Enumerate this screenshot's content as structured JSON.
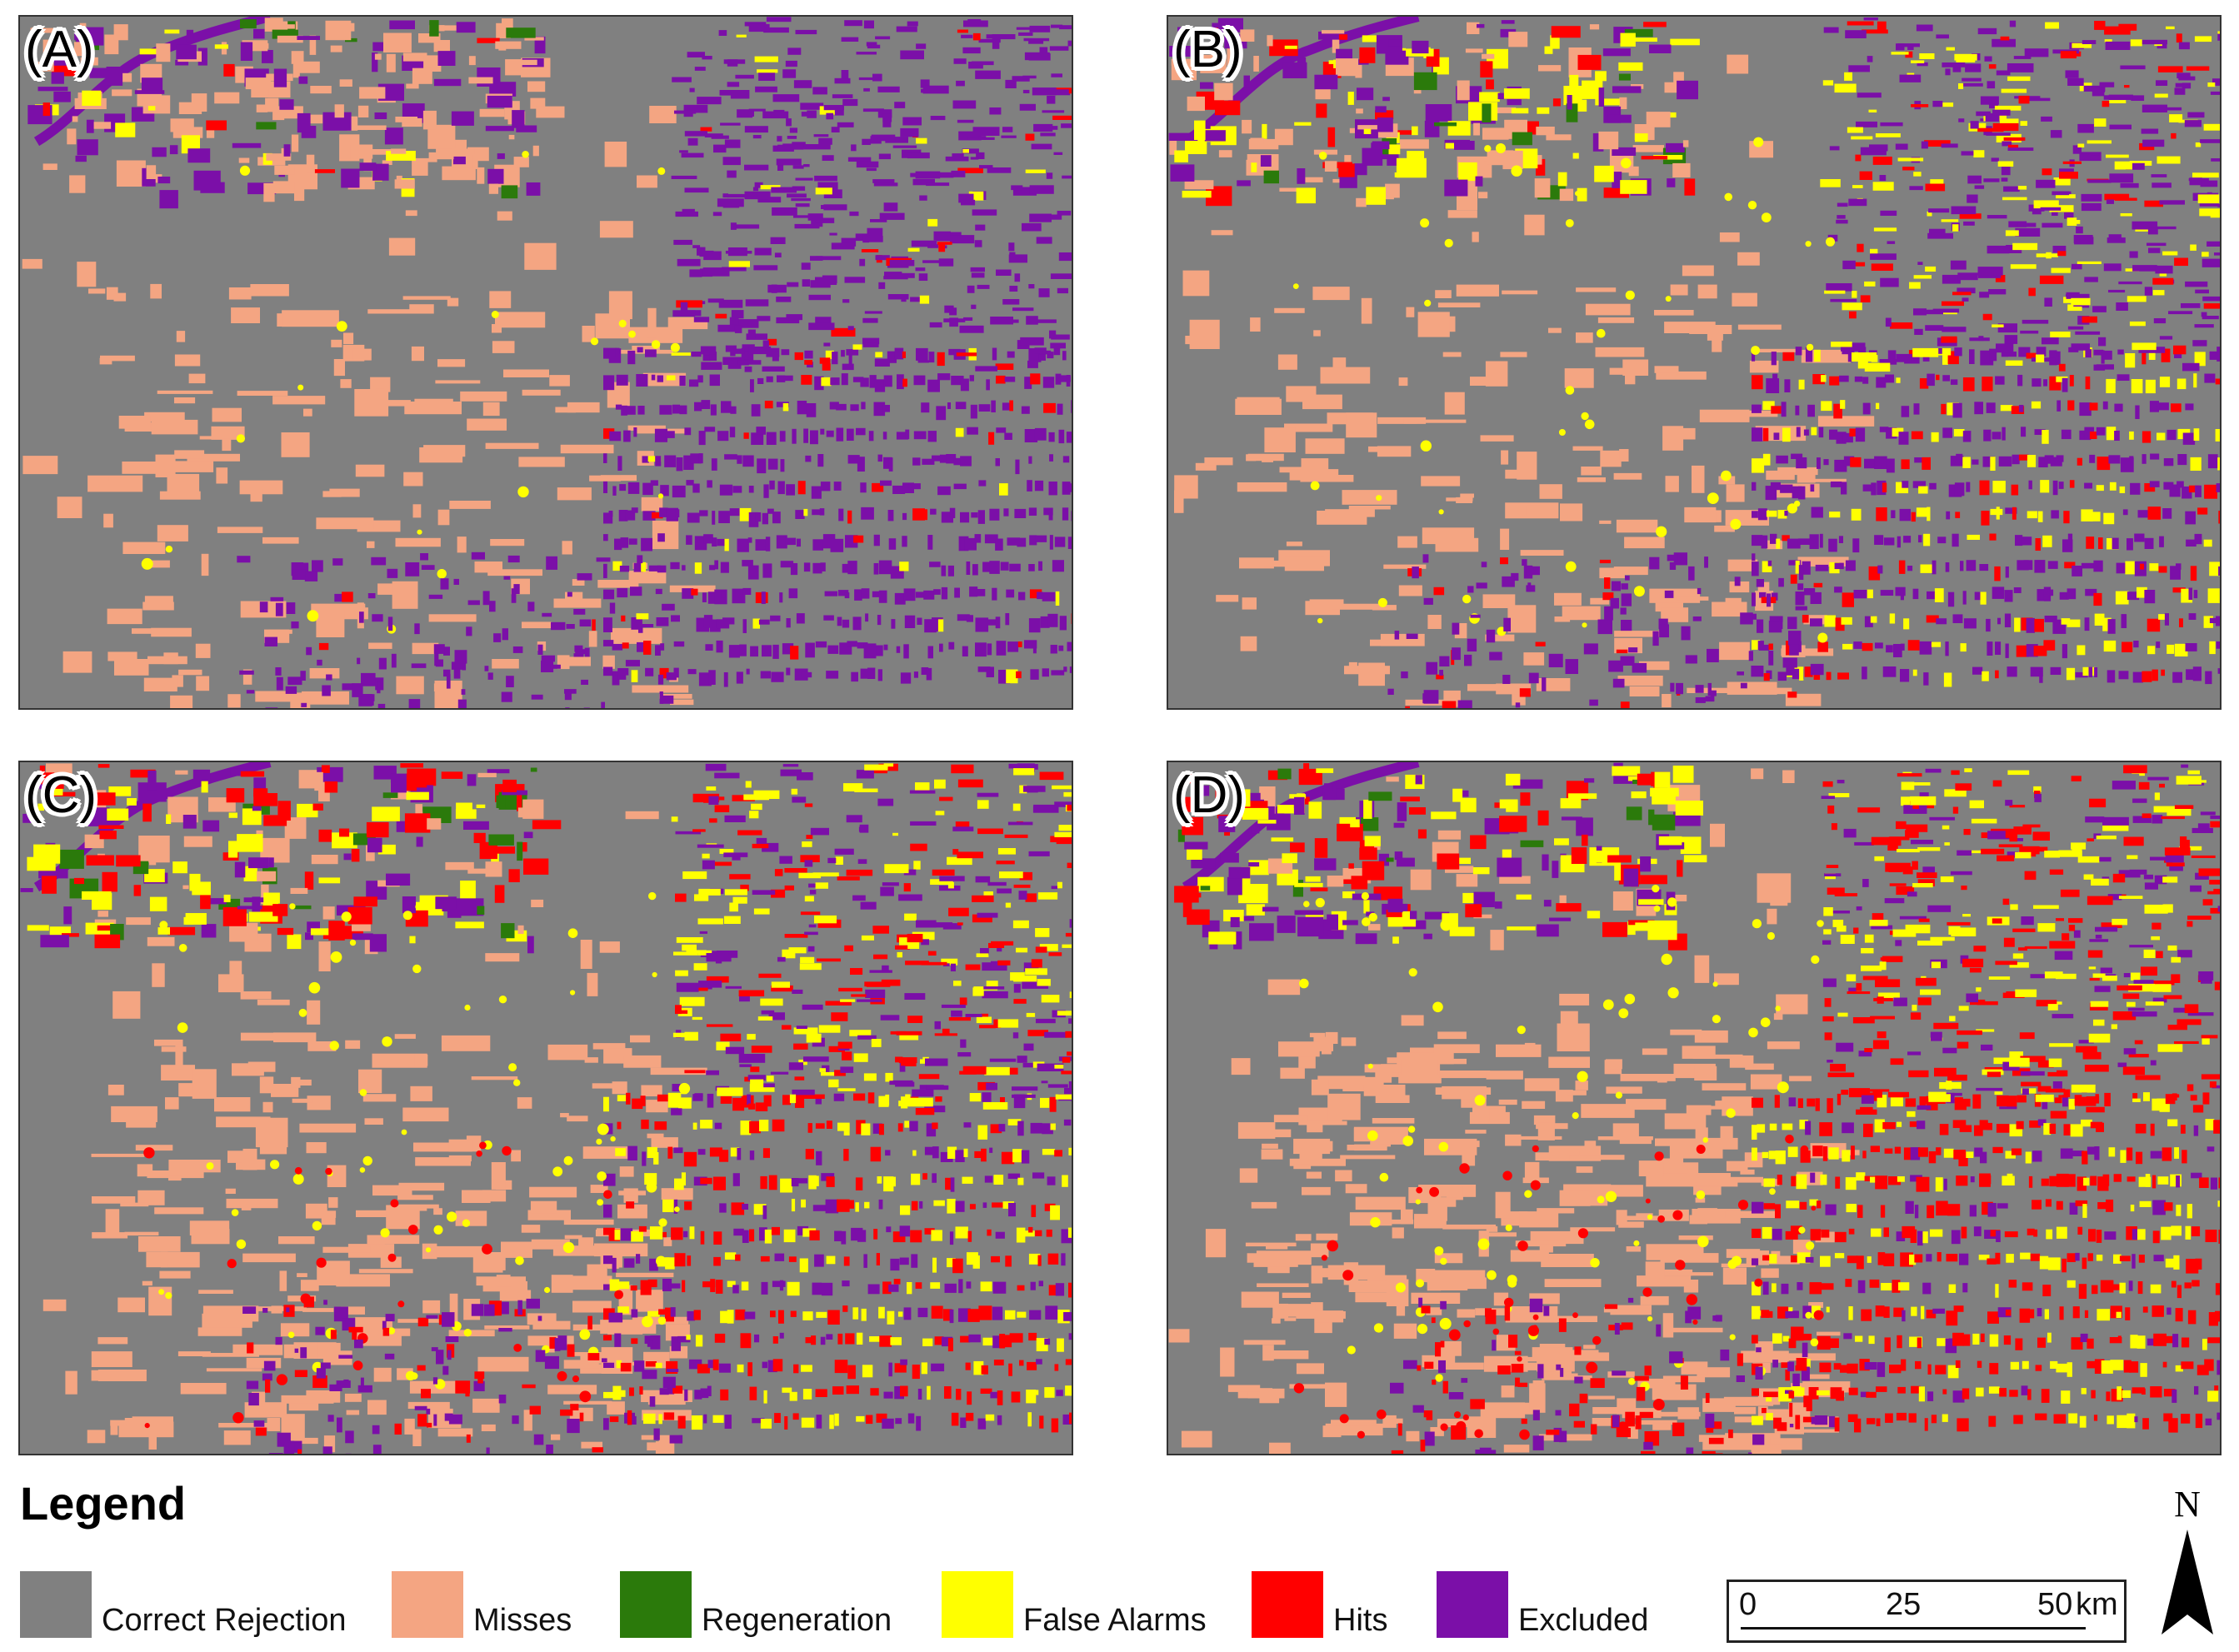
{
  "panels": [
    {
      "label": "(A)"
    },
    {
      "label": "(B)"
    },
    {
      "label": "(C)"
    },
    {
      "label": "(D)"
    }
  ],
  "legend": {
    "title": "Legend",
    "items": [
      {
        "label": "Correct Rejection",
        "color": "#808080"
      },
      {
        "label": "Misses",
        "color": "#F4A582"
      },
      {
        "label": "Regeneration",
        "color": "#2B7A0B"
      },
      {
        "label": "False Alarms",
        "color": "#FFFF00"
      },
      {
        "label": "Hits",
        "color": "#FF0000"
      },
      {
        "label": "Excluded",
        "color": "#7B0FA8"
      }
    ]
  },
  "scale_bar": {
    "tick_0": "0",
    "tick_25": "25",
    "tick_50": "50",
    "unit": "km"
  },
  "north_arrow": {
    "letter": "N"
  }
}
